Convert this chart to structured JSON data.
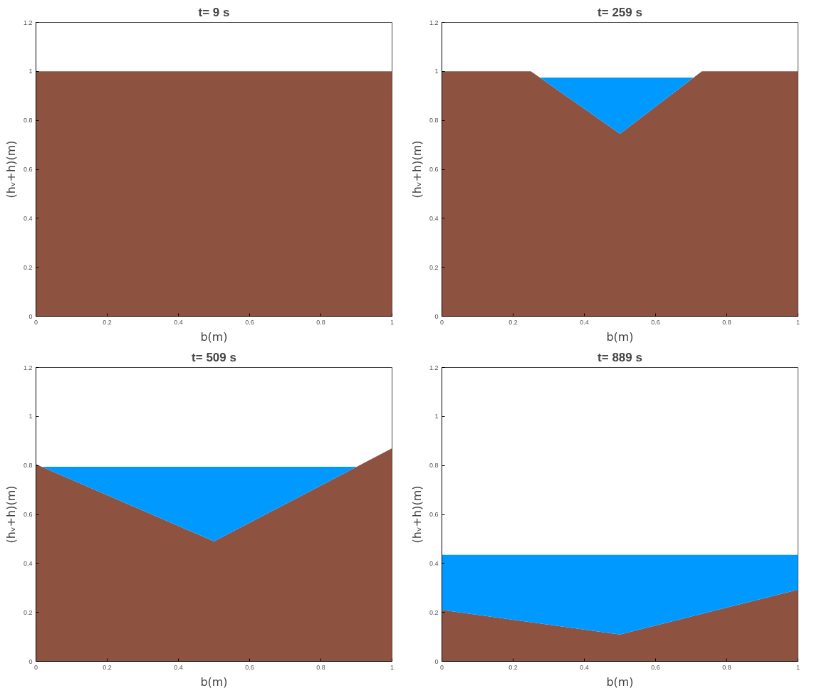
{
  "chart_data": [
    {
      "type": "area",
      "title": "t= 9 s",
      "xlabel": "b(m)",
      "ylabel": "(hᵥ+h)(m)",
      "xlim": [
        0,
        1
      ],
      "ylim": [
        0,
        1.2
      ],
      "xticks": [
        0,
        0.2,
        0.4,
        0.6,
        0.8,
        1
      ],
      "yticks": [
        0,
        0.2,
        0.4,
        0.6,
        0.8,
        1,
        1.2
      ],
      "grid": false,
      "stacked": true,
      "x": [
        0,
        0.5,
        1
      ],
      "series": [
        {
          "color": "#8e5241",
          "values": [
            1.0,
            1.0,
            1.0
          ]
        }
      ]
    },
    {
      "type": "area",
      "title": "t= 259 s",
      "xlabel": "b(m)",
      "ylabel": "(hᵥ+h)(m)",
      "xlim": [
        0,
        1
      ],
      "ylim": [
        0,
        1.2
      ],
      "xticks": [
        0,
        0.2,
        0.4,
        0.6,
        0.8,
        1
      ],
      "yticks": [
        0,
        0.2,
        0.4,
        0.6,
        0.8,
        1,
        1.2
      ],
      "grid": false,
      "stacked": true,
      "x": [
        0,
        0.25,
        0.275,
        0.5,
        0.707,
        0.73,
        1
      ],
      "series": [
        {
          "color": "#8e5241",
          "values": [
            1.0,
            1.0,
            0.975,
            0.745,
            0.975,
            1.0,
            1.0
          ]
        },
        {
          "color": "#0099ff",
          "values": [
            null,
            null,
            0,
            0.23,
            0,
            null,
            null
          ]
        }
      ]
    },
    {
      "type": "area",
      "title": "t= 509 s",
      "xlabel": "b(m)",
      "ylabel": "(hᵥ+h)(m)",
      "xlim": [
        0,
        1
      ],
      "ylim": [
        0,
        1.2
      ],
      "xticks": [
        0,
        0.2,
        0.4,
        0.6,
        0.8,
        1
      ],
      "yticks": [
        0,
        0.2,
        0.4,
        0.6,
        0.8,
        1,
        1.2
      ],
      "grid": false,
      "stacked": true,
      "x": [
        0,
        0.016,
        0.5,
        0.901,
        1
      ],
      "series": [
        {
          "color": "#8e5241",
          "values": [
            0.805,
            0.795,
            0.49,
            0.795,
            0.87
          ]
        },
        {
          "color": "#0099ff",
          "values": [
            null,
            0,
            0.305,
            0,
            null
          ]
        }
      ]
    },
    {
      "type": "area",
      "title": "t= 889 s",
      "xlabel": "b(m)",
      "ylabel": "(hᵥ+h)(m)",
      "xlim": [
        0,
        1
      ],
      "ylim": [
        0,
        1.2
      ],
      "xticks": [
        0,
        0.2,
        0.4,
        0.6,
        0.8,
        1
      ],
      "yticks": [
        0,
        0.2,
        0.4,
        0.6,
        0.8,
        1,
        1.2
      ],
      "grid": false,
      "stacked": true,
      "x": [
        0,
        0.5,
        1
      ],
      "series": [
        {
          "color": "#8e5241",
          "values": [
            0.21,
            0.11,
            0.293
          ]
        },
        {
          "color": "#0099ff",
          "values": [
            0.225,
            0.325,
            0.142
          ]
        }
      ]
    }
  ]
}
